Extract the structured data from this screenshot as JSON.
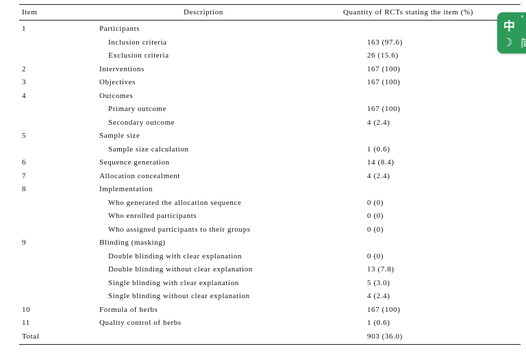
{
  "header": {
    "item": "Item",
    "description": "Description",
    "quantity": "Quantity of RCTs stating the item (%)"
  },
  "rows": [
    {
      "item": "1",
      "desc": "Participants",
      "qty": ""
    },
    {
      "item": "",
      "desc": "Inclusion criteria",
      "qty": "163 (97.6)"
    },
    {
      "item": "",
      "desc": "Exclusion criteria",
      "qty": "26 (15.6)"
    },
    {
      "item": "2",
      "desc": "Interventions",
      "qty": "167 (100)"
    },
    {
      "item": "3",
      "desc": "Objectives",
      "qty": "167 (100)"
    },
    {
      "item": "4",
      "desc": "Outcomes",
      "qty": ""
    },
    {
      "item": "",
      "desc": "Primary outcome",
      "qty": "167 (100)"
    },
    {
      "item": "",
      "desc": "Secondary outcome",
      "qty": "4 (2.4)"
    },
    {
      "item": "5",
      "desc": "Sample size",
      "qty": ""
    },
    {
      "item": "",
      "desc": "Sample size calculation",
      "qty": "1 (0.6)"
    },
    {
      "item": "6",
      "desc": "Sequence generation",
      "qty": "14 (8.4)"
    },
    {
      "item": "7",
      "desc": "Allocation concealment",
      "qty": "4 (2.4)"
    },
    {
      "item": "8",
      "desc": "Implementation",
      "qty": ""
    },
    {
      "item": "",
      "desc": "Who generated the allocation sequence",
      "qty": "0 (0)"
    },
    {
      "item": "",
      "desc": "Who enrolled participants",
      "qty": "0 (0)"
    },
    {
      "item": "",
      "desc": "Who assigned participants to their groups",
      "qty": "0 (0)"
    },
    {
      "item": "9",
      "desc": "Blinding (masking)",
      "qty": ""
    },
    {
      "item": "",
      "desc": "Double blinding with clear explanation",
      "qty": "0 (0)"
    },
    {
      "item": "",
      "desc": "Double blinding without clear explanation",
      "qty": "13 (7.8)"
    },
    {
      "item": "",
      "desc": "Single blinding with clear explanation",
      "qty": "5 (3.0)"
    },
    {
      "item": "",
      "desc": "Single blinding without clear explanation",
      "qty": "4 (2.4)"
    },
    {
      "item": "10",
      "desc": "Formula of herbs",
      "qty": "167 (100)"
    },
    {
      "item": "11",
      "desc": "Quality control of herbs",
      "qty": "1 (0.6)"
    },
    {
      "item": "Total",
      "desc": "",
      "qty": "903 (36.0)"
    }
  ],
  "ime": {
    "mode": "中",
    "punct": "°",
    "moon": "☽",
    "simplified": "简"
  }
}
